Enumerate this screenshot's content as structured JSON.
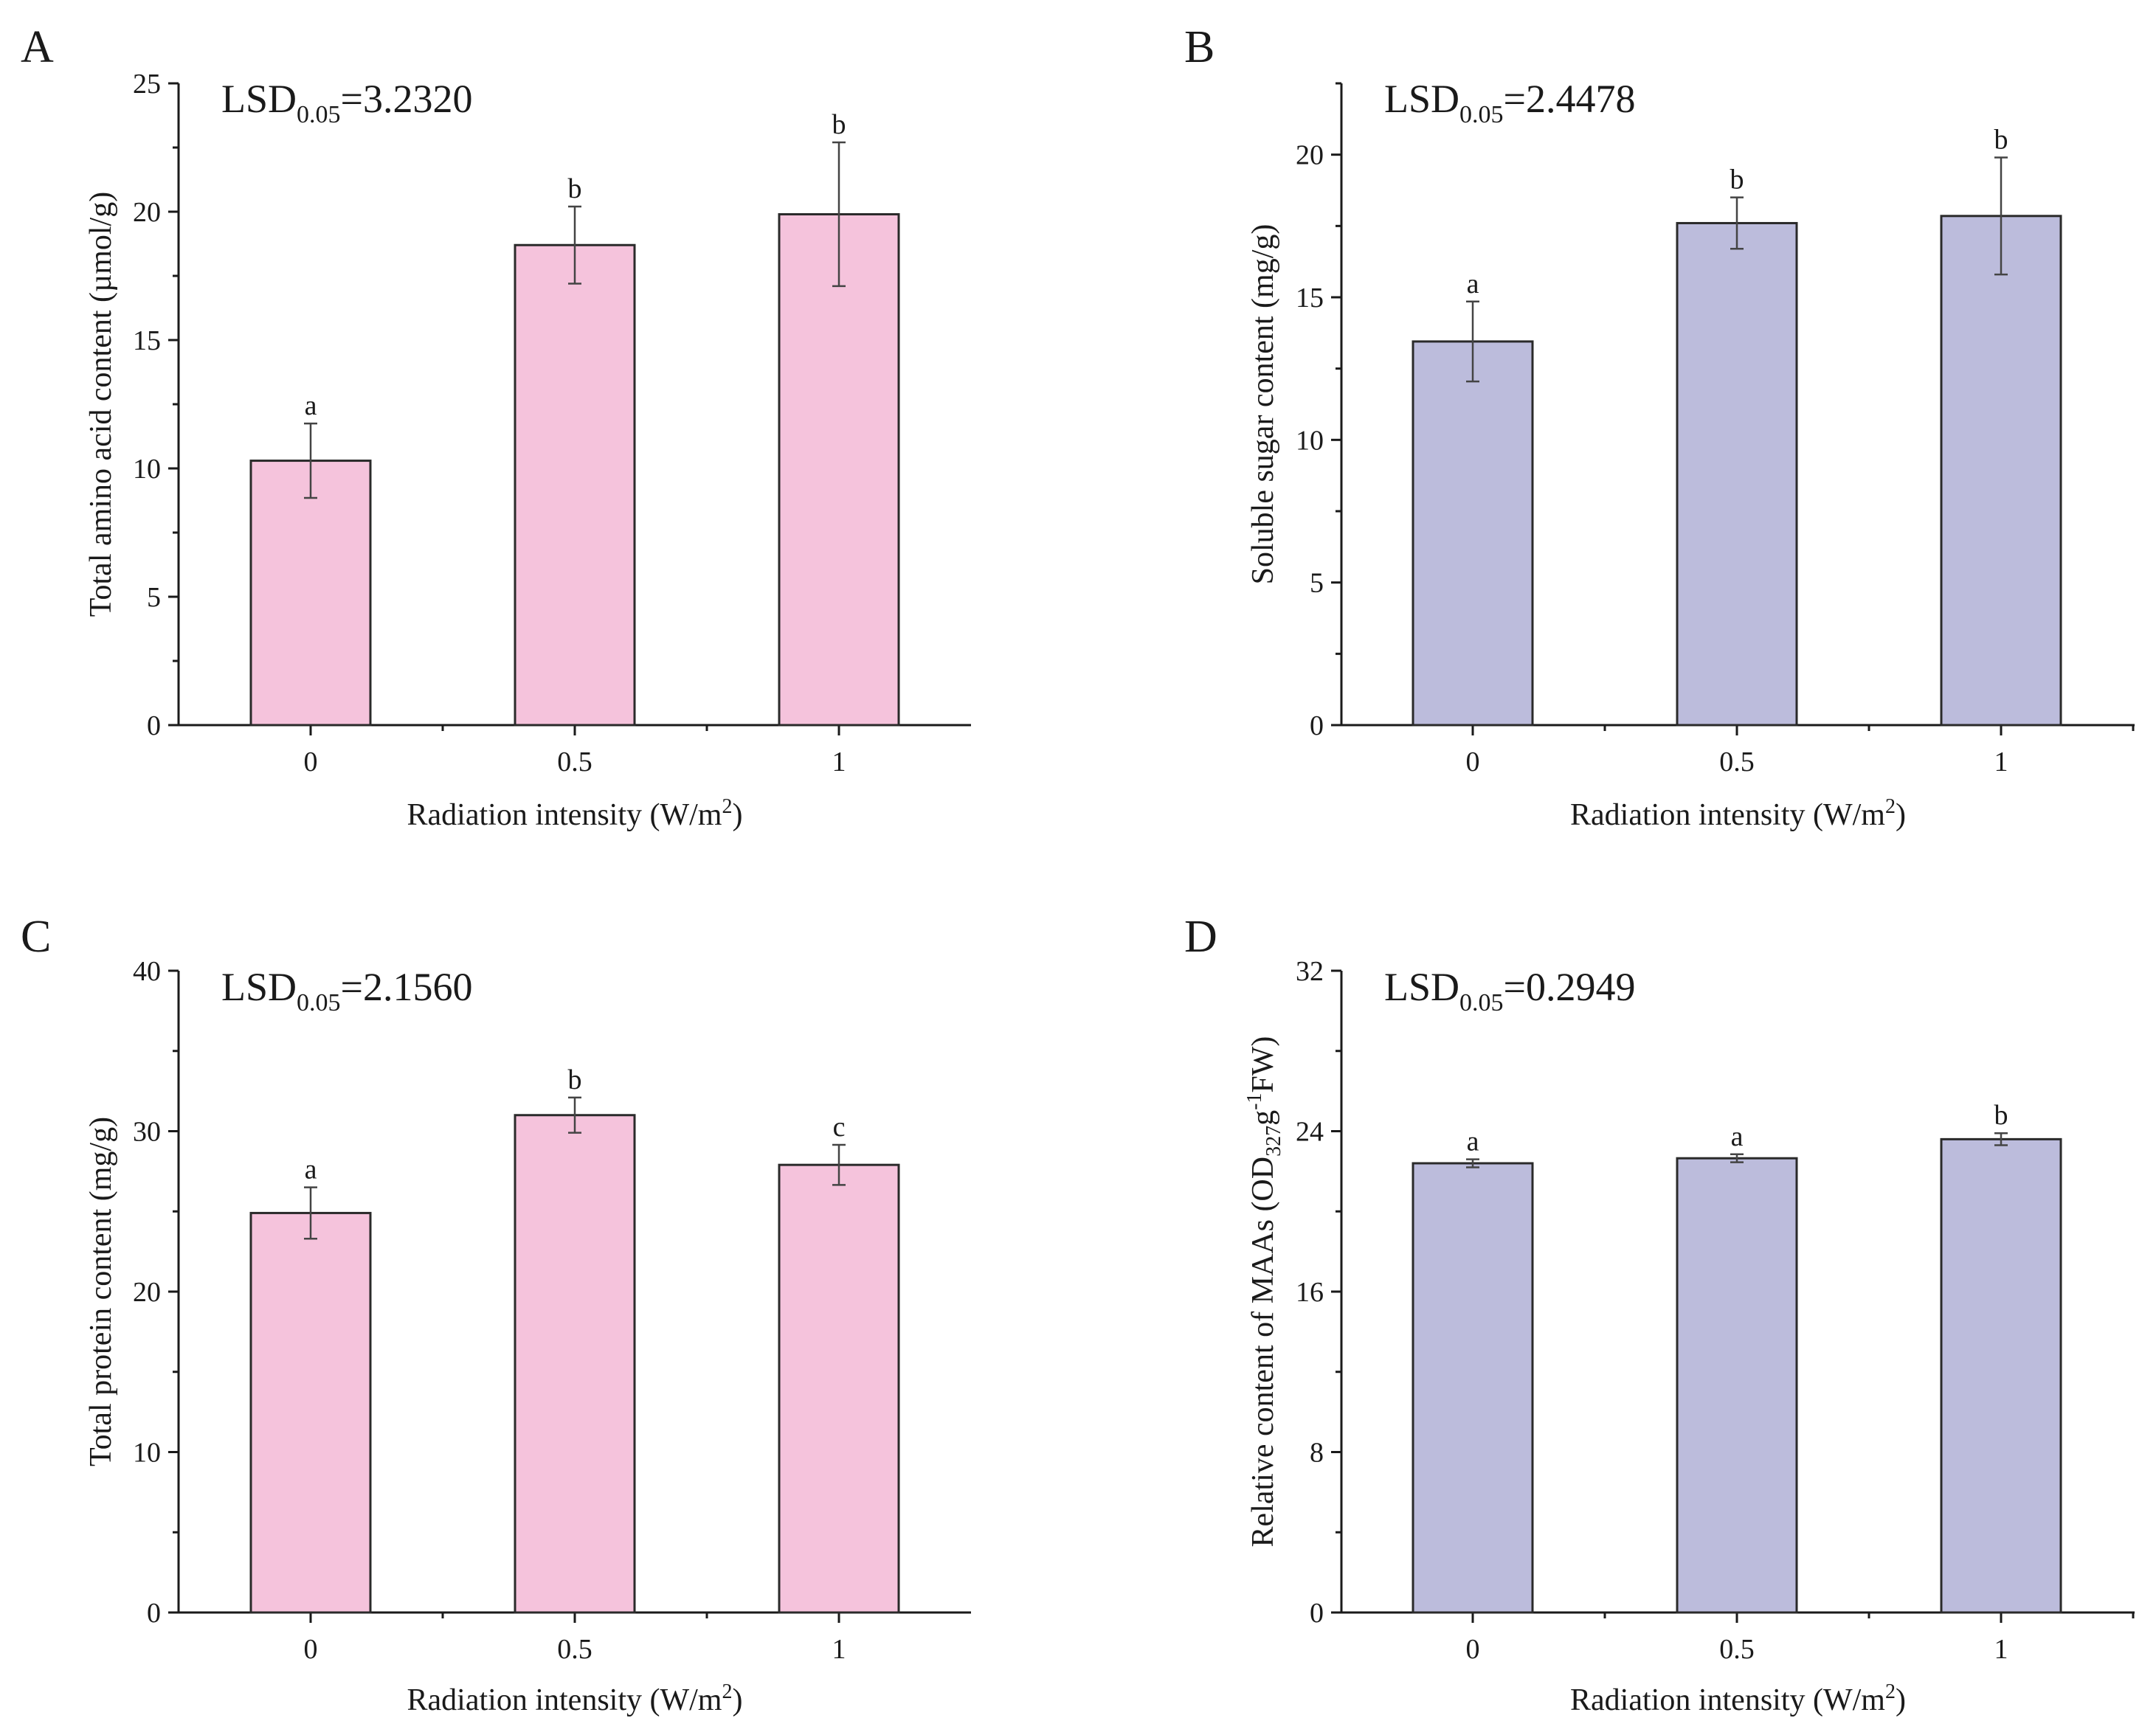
{
  "figure": {
    "xlabel_text": "Radiation intensity (W/m",
    "xlabel_sup": "2",
    "xlabel_end": ")"
  },
  "chart_data": [
    {
      "panel": "A",
      "type": "bar",
      "categories": [
        "0",
        "0.5",
        "1"
      ],
      "values": [
        10.3,
        18.7,
        19.9
      ],
      "errors": [
        1.45,
        1.5,
        2.8
      ],
      "letters": [
        "a",
        "b",
        "b"
      ],
      "ylabel": "Total amino acid content (µmol/g)",
      "ylim": [
        0,
        25
      ],
      "yticks": [
        0,
        5,
        10,
        15,
        20,
        25
      ],
      "lsd_base": "LSD",
      "lsd_sub": "0.05",
      "lsd_value": "=3.2320",
      "color": "#f5c3dc"
    },
    {
      "panel": "B",
      "type": "bar",
      "categories": [
        "0",
        "0.5",
        "1"
      ],
      "values": [
        13.45,
        17.6,
        17.85
      ],
      "errors": [
        1.4,
        0.9,
        2.05
      ],
      "letters": [
        "a",
        "b",
        "b"
      ],
      "ylabel": "Soluble sugar content (mg/g)",
      "ylim": [
        0,
        22.5
      ],
      "yticks": [
        0,
        5,
        10,
        15,
        20
      ],
      "lsd_base": "LSD",
      "lsd_sub": "0.05",
      "lsd_value": "=2.4478",
      "color": "#bcbcdc"
    },
    {
      "panel": "C",
      "type": "bar",
      "categories": [
        "0",
        "0.5",
        "1"
      ],
      "values": [
        24.9,
        31.0,
        27.9
      ],
      "errors": [
        1.6,
        1.1,
        1.25
      ],
      "letters": [
        "a",
        "b",
        "c"
      ],
      "ylabel": "Total protein content (mg/g)",
      "ylim": [
        0,
        40
      ],
      "yticks": [
        0,
        10,
        20,
        30,
        40
      ],
      "lsd_base": "LSD",
      "lsd_sub": "0.05",
      "lsd_value": "=2.1560",
      "color": "#f5c3dc"
    },
    {
      "panel": "D",
      "type": "bar",
      "categories": [
        "0",
        "0.5",
        "1"
      ],
      "values": [
        22.4,
        22.65,
        23.6
      ],
      "errors": [
        0.2,
        0.2,
        0.3
      ],
      "letters": [
        "a",
        "a",
        "b"
      ],
      "ylabel": "Relative content of MAAs (OD",
      "ylabel_sub": "327",
      "ylabel_mid": "g",
      "ylabel_sup": "-1",
      "ylabel_end": "FW)",
      "ylim": [
        0,
        32
      ],
      "yticks": [
        0,
        8,
        16,
        24,
        32
      ],
      "lsd_base": "LSD",
      "lsd_sub": "0.05",
      "lsd_value": "=0.2949",
      "color": "#bcbcdc"
    }
  ]
}
